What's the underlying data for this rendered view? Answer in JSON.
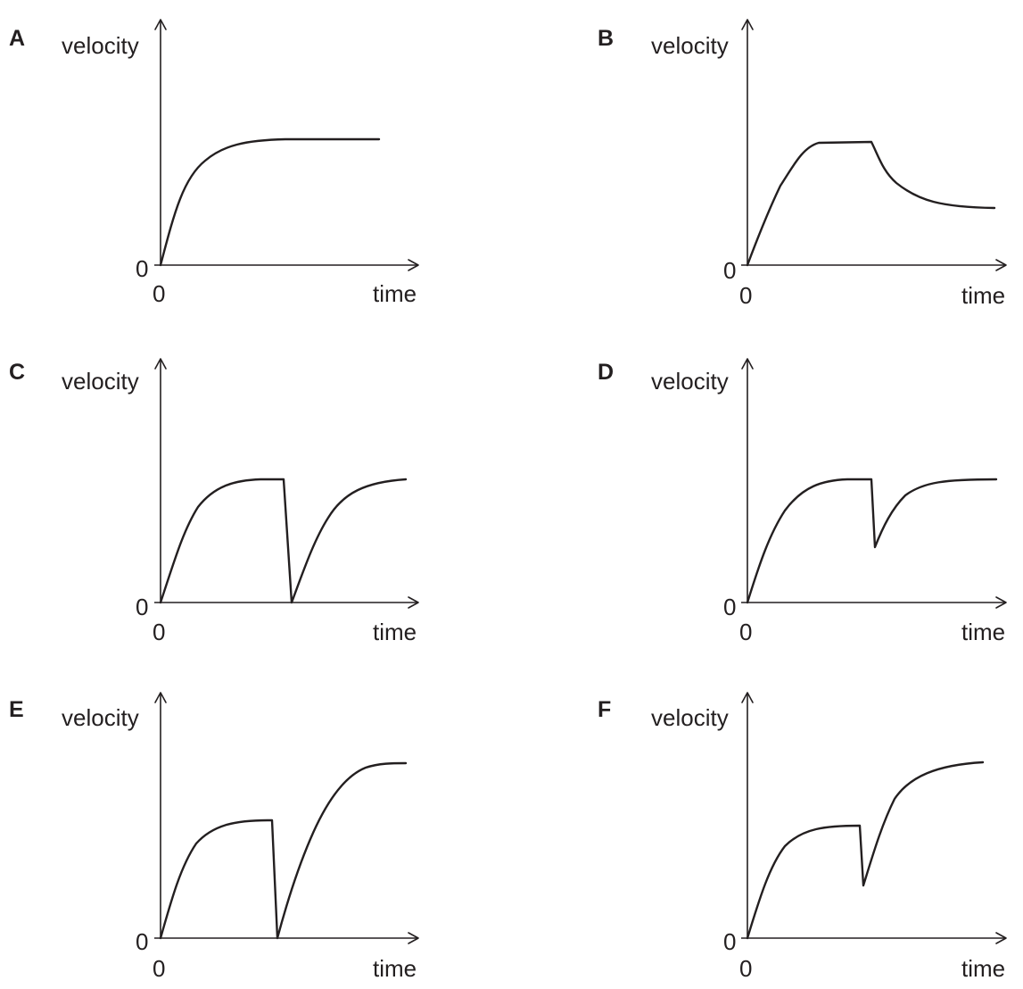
{
  "panels": [
    {
      "letter": "A",
      "y_label": "velocity",
      "x_label": "time",
      "y_origin_label": "0",
      "x_origin_label": "0",
      "curve": "rises from 0 and levels off at a constant velocity"
    },
    {
      "letter": "B",
      "y_label": "velocity",
      "x_label": "time",
      "y_origin_label": "0",
      "x_origin_label": "0",
      "curve": "rises to a constant velocity, then decreases and levels off at a lower constant velocity"
    },
    {
      "letter": "C",
      "y_label": "velocity",
      "x_label": "time",
      "y_origin_label": "0",
      "x_origin_label": "0",
      "curve": "rises to a constant velocity, drops suddenly to 0, then rises again to the same constant velocity"
    },
    {
      "letter": "D",
      "y_label": "velocity",
      "x_label": "time",
      "y_origin_label": "0",
      "x_origin_label": "0",
      "curve": "rises to a constant velocity, drops suddenly part of the way, then rises again to the same constant velocity"
    },
    {
      "letter": "E",
      "y_label": "velocity",
      "x_label": "time",
      "y_origin_label": "0",
      "x_origin_label": "0",
      "curve": "rises to a constant velocity, drops suddenly to 0, then rises to a higher constant velocity"
    },
    {
      "letter": "F",
      "y_label": "velocity",
      "x_label": "time",
      "y_origin_label": "0",
      "x_origin_label": "0",
      "curve": "rises to a constant velocity, drops suddenly part of the way, then rises to a higher constant velocity"
    }
  ],
  "colors": {
    "ink": "#231f20",
    "background": "#ffffff"
  }
}
